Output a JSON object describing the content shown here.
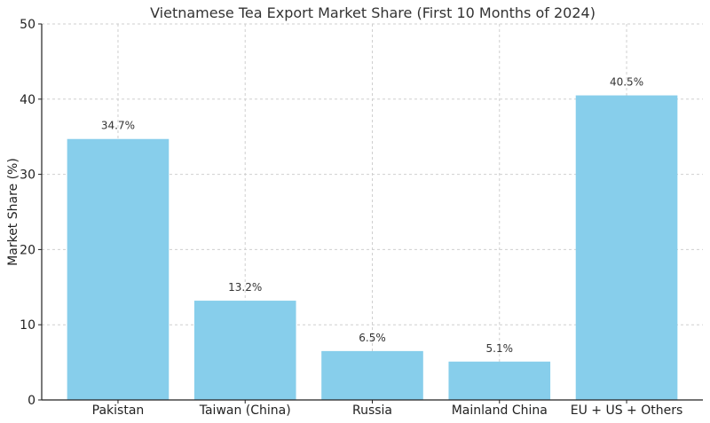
{
  "chart_data": {
    "type": "bar",
    "title": "Vietnamese Tea Export Market Share (First 10 Months of 2024)",
    "xlabel": "",
    "ylabel": "Market Share (%)",
    "categories": [
      "Pakistan",
      "Taiwan (China)",
      "Russia",
      "Mainland China",
      "EU + US + Others"
    ],
    "values": [
      34.7,
      13.2,
      6.5,
      5.1,
      40.5
    ],
    "data_labels": [
      "34.7%",
      "13.2%",
      "6.5%",
      "5.1%",
      "40.5%"
    ],
    "ylim": [
      0,
      50
    ],
    "yticks": [
      0,
      10,
      20,
      30,
      40,
      50
    ],
    "grid": true,
    "legend": "none",
    "colors": {
      "bar": "#87CEEB",
      "axis": "#222222",
      "grid": "#cfcfcf",
      "text": "#333333"
    }
  }
}
